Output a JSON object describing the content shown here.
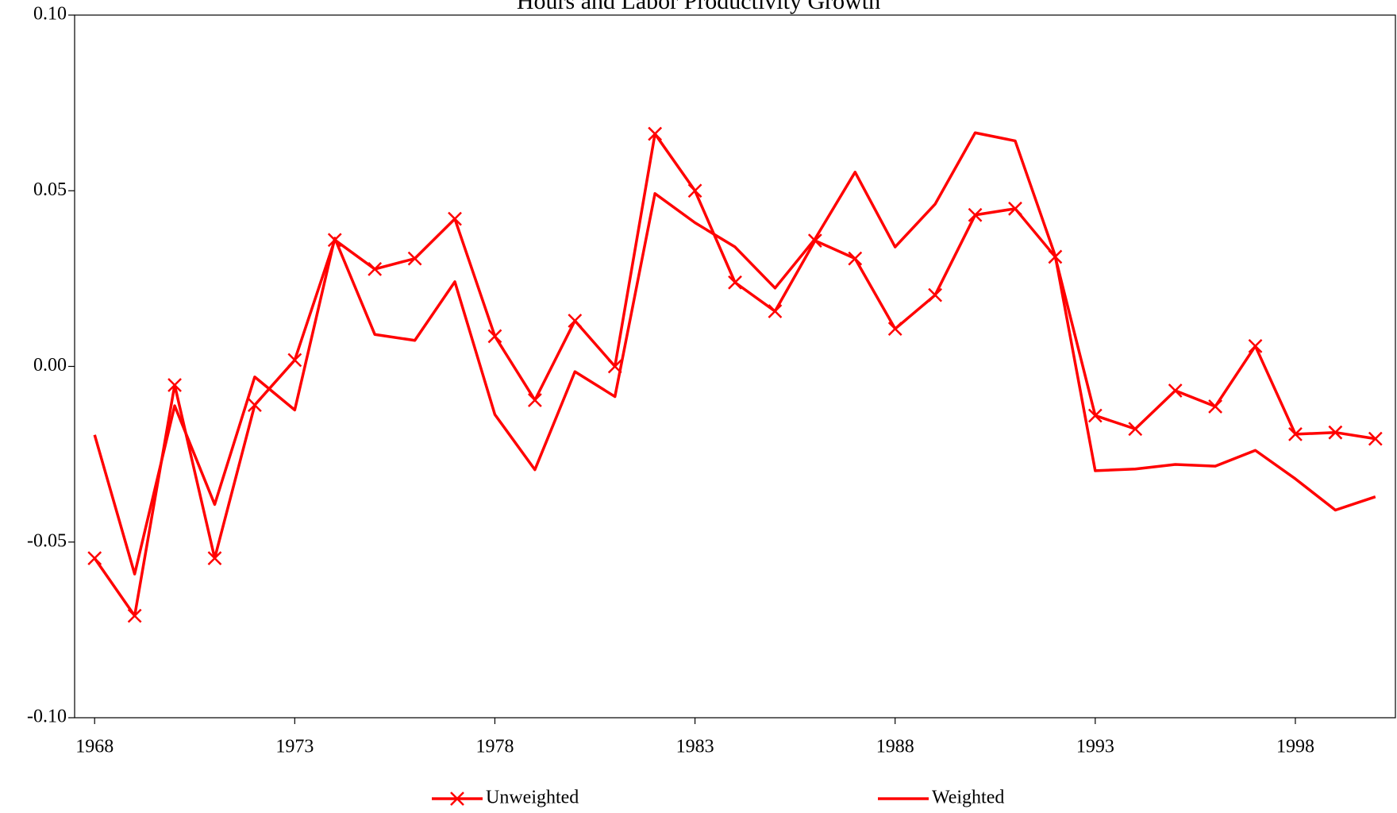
{
  "chart_data": {
    "type": "line",
    "title": "Hours and Labor Productivity Growth",
    "x": [
      1968,
      1969,
      1970,
      1971,
      1972,
      1973,
      1974,
      1975,
      1976,
      1977,
      1978,
      1979,
      1980,
      1981,
      1982,
      1983,
      1984,
      1985,
      1986,
      1987,
      1988,
      1989,
      1990,
      1991,
      1992,
      1993,
      1994,
      1995,
      1996,
      1997,
      1998,
      1999,
      2000
    ],
    "xlim": [
      1967.5,
      2000.5
    ],
    "xticks": [
      1968,
      1973,
      1978,
      1983,
      1988,
      1993,
      1998
    ],
    "ylim": [
      -0.1,
      0.1
    ],
    "yticks": [
      {
        "value": -0.1,
        "label": "-0.10"
      },
      {
        "value": -0.05,
        "label": "-0.05"
      },
      {
        "value": 0,
        "label": "0.00"
      },
      {
        "value": 0.05,
        "label": "0.05"
      },
      {
        "value": 0.1,
        "label": "0.10"
      }
    ],
    "grid": false,
    "legend": "bottom",
    "series": [
      {
        "name": "Unweighted",
        "color": "#ff0000",
        "marker": "x",
        "values": [
          -0.0546,
          -0.071,
          -0.0053,
          -0.0546,
          -0.011,
          0.0018,
          0.036,
          0.0277,
          0.0307,
          0.042,
          0.0086,
          -0.0096,
          0.013,
          0.0,
          0.0662,
          0.05,
          0.0239,
          0.0157,
          0.0358,
          0.0307,
          0.0107,
          0.0203,
          0.0431,
          0.0449,
          0.0312,
          -0.014,
          -0.0178,
          -0.0069,
          -0.0114,
          0.0058,
          -0.0193,
          -0.0188,
          -0.0206
        ]
      },
      {
        "name": "Weighted",
        "color": "#ff0000",
        "values": [
          -0.0195,
          -0.0591,
          -0.0112,
          -0.0393,
          -0.003,
          -0.0124,
          0.0365,
          0.0091,
          0.0074,
          0.0241,
          -0.0137,
          -0.0294,
          -0.0015,
          -0.0086,
          0.0492,
          0.0409,
          0.034,
          0.0223,
          0.0363,
          0.0553,
          0.034,
          0.0462,
          0.0665,
          0.0642,
          0.0315,
          -0.0297,
          -0.0292,
          -0.0279,
          -0.0284,
          -0.0239,
          -0.032,
          -0.0409,
          -0.0371
        ]
      }
    ]
  }
}
